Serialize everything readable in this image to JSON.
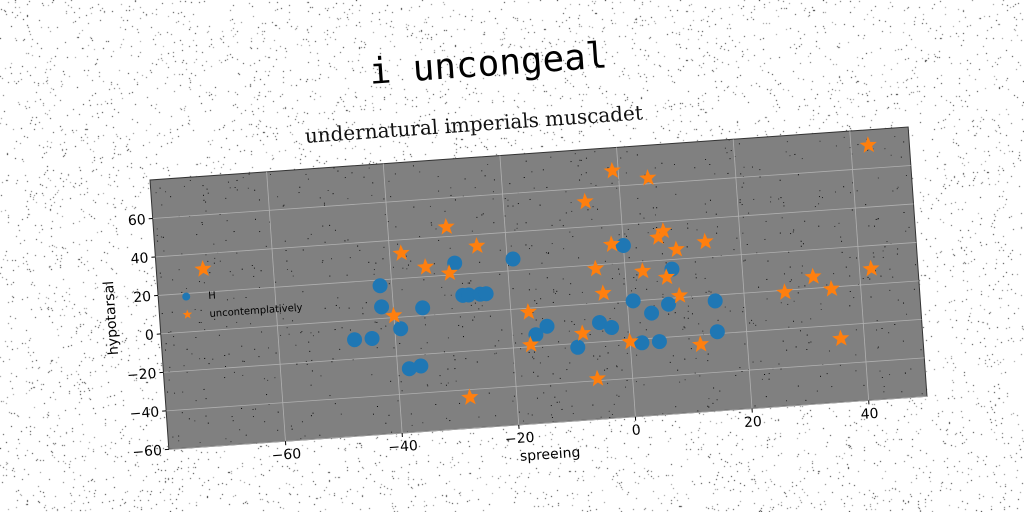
{
  "title": "i uncongeal",
  "subtitle": "undernatural imperials muscadet",
  "colors": {
    "series_a": "#1f77b4",
    "series_b": "#ff7f0e",
    "plot_bg": "#808080",
    "grid": "#b0b0b0"
  },
  "chart_data": {
    "type": "scatter",
    "title": "i uncongeal",
    "subtitle": "undernatural imperials muscadet",
    "xlabel": "spreeing",
    "ylabel": "hypotarsal",
    "xlim": [
      -80,
      50
    ],
    "ylim": [
      -60,
      80
    ],
    "xticks": [
      -60,
      -40,
      -20,
      0,
      20,
      40
    ],
    "yticks": [
      -60,
      -40,
      -20,
      0,
      20,
      40,
      60
    ],
    "grid": true,
    "legend": {
      "placement": "center-left"
    },
    "series": [
      {
        "name": "H",
        "marker": "circle",
        "color": "#1f77b4",
        "points": [
          [
            -47,
            -10
          ],
          [
            -44,
            -10
          ],
          [
            -42,
            6
          ],
          [
            -42,
            17
          ],
          [
            -39,
            -6
          ],
          [
            -38,
            -27
          ],
          [
            -36,
            -26
          ],
          [
            -35,
            4
          ],
          [
            -29,
            26
          ],
          [
            -28,
            9
          ],
          [
            -27,
            9
          ],
          [
            -25,
            9
          ],
          [
            -24,
            9
          ],
          [
            -19,
            26
          ],
          [
            -16,
            -14
          ],
          [
            -14,
            -10
          ],
          [
            -9,
            -22
          ],
          [
            -5,
            -10
          ],
          [
            -3,
            -13
          ],
          [
            0,
            29
          ],
          [
            1,
            0
          ],
          [
            2,
            -22
          ],
          [
            4,
            -7
          ],
          [
            5,
            -22
          ],
          [
            7,
            -3
          ],
          [
            8,
            15
          ],
          [
            15,
            -3
          ],
          [
            15,
            -19
          ]
        ]
      },
      {
        "name": "uncontemplatively",
        "marker": "star",
        "color": "#ff7f0e",
        "points": [
          [
            -72,
            32
          ],
          [
            -40,
            1
          ],
          [
            -38,
            33
          ],
          [
            -34,
            25
          ],
          [
            -30,
            45
          ],
          [
            -30,
            21
          ],
          [
            -25,
            34
          ],
          [
            -28,
            -44
          ],
          [
            -17,
            -2
          ],
          [
            -17,
            -19
          ],
          [
            -8,
            -15
          ],
          [
            -6,
            53
          ],
          [
            -5,
            18
          ],
          [
            -4,
            5
          ],
          [
            -6,
            -39
          ],
          [
            -2,
            30
          ],
          [
            -1,
            68
          ],
          [
            0,
            -21
          ],
          [
            3,
            15
          ],
          [
            5,
            63
          ],
          [
            6,
            32
          ],
          [
            7,
            35
          ],
          [
            7,
            11
          ],
          [
            9,
            25
          ],
          [
            9,
            1
          ],
          [
            12,
            -25
          ],
          [
            14,
            28
          ],
          [
            27,
            -1
          ],
          [
            32,
            6
          ],
          [
            35,
            -1
          ],
          [
            36,
            -27
          ],
          [
            42,
            8
          ],
          [
            43,
            72
          ]
        ]
      }
    ]
  }
}
